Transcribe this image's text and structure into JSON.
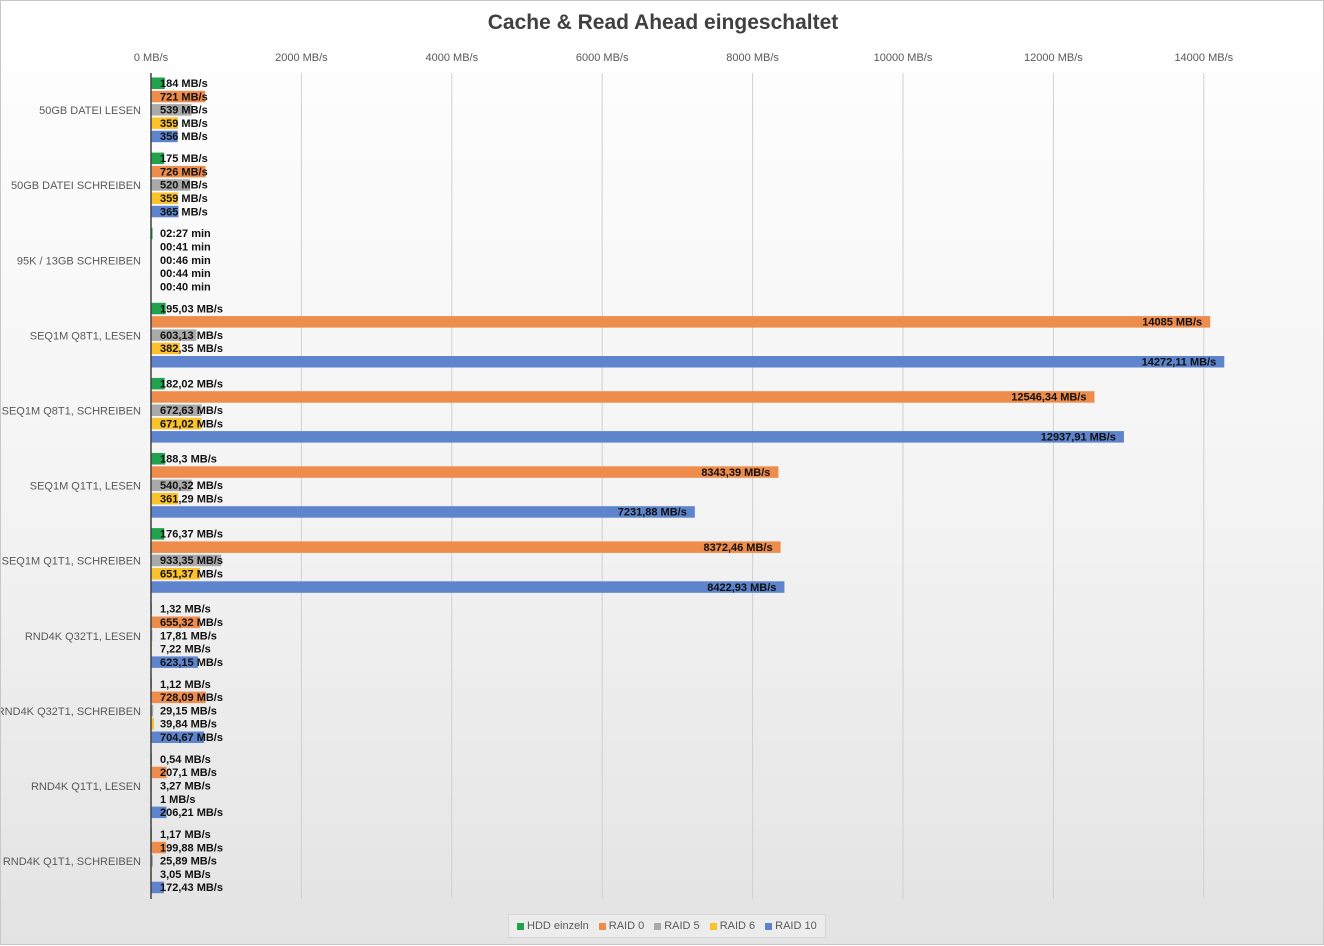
{
  "chart_data": {
    "type": "bar",
    "orientation": "horizontal",
    "title": "Cache & Read Ahead eingeschaltet",
    "xlabel": "",
    "ylabel": "",
    "xlim": [
      0,
      14000
    ],
    "grid": true,
    "legend_position": "bottom",
    "tick_values": [
      0,
      2000,
      4000,
      6000,
      8000,
      10000,
      12000,
      14000
    ],
    "tick_labels": [
      "0 MB/s",
      "2000 MB/s",
      "4000 MB/s",
      "6000 MB/s",
      "8000 MB/s",
      "10000 MB/s",
      "12000 MB/s",
      "14000 MB/s"
    ],
    "categories": [
      "50GB DATEI LESEN",
      "50GB DATEI SCHREIBEN",
      "95K / 13GB SCHREIBEN",
      "SEQ1M Q8T1, LESEN",
      "SEQ1M Q8T1, SCHREIBEN",
      "SEQ1M Q1T1, LESEN",
      "SEQ1M Q1T1, SCHREIBEN",
      "RND4K Q32T1, LESEN",
      "RND4K Q32T1, SCHREIBEN",
      "RND4K Q1T1, LESEN",
      "RND4K Q1T1, SCHREIBEN"
    ],
    "series": [
      {
        "name": "HDD einzeln",
        "color": "#21a34d",
        "values": [
          184,
          175,
          20,
          195.03,
          182.02,
          188.3,
          176.37,
          1.32,
          1.12,
          0.54,
          1.17
        ],
        "labels": [
          "184 MB/s",
          "175 MB/s",
          "02:27 min",
          "195,03 MB/s",
          "182,02 MB/s",
          "188,3 MB/s",
          "176,37 MB/s",
          "1,32 MB/s",
          "1,12 MB/s",
          "0,54 MB/s",
          "1,17 MB/s"
        ]
      },
      {
        "name": "RAID 0",
        "color": "#ee8c4c",
        "values": [
          721,
          726,
          0,
          14085,
          12546.34,
          8343.39,
          8372.46,
          655.32,
          728.09,
          207.1,
          199.88
        ],
        "labels": [
          "721 MB/s",
          "726 MB/s",
          "00:41 min",
          "14085 MB/s",
          "12546,34 MB/s",
          "8343,39 MB/s",
          "8372,46 MB/s",
          "655,32 MB/s",
          "728,09 MB/s",
          "207,1 MB/s",
          "199,88 MB/s"
        ]
      },
      {
        "name": "RAID 5",
        "color": "#a9a9a9",
        "values": [
          539,
          520,
          0,
          603.13,
          672.63,
          540.32,
          933.35,
          17.81,
          29.15,
          3.27,
          25.89
        ],
        "labels": [
          "539 MB/s",
          "520 MB/s",
          "00:46 min",
          "603,13 MB/s",
          "672,63 MB/s",
          "540,32 MB/s",
          "933,35 MB/s",
          "17,81 MB/s",
          "29,15 MB/s",
          "3,27 MB/s",
          "25,89 MB/s"
        ]
      },
      {
        "name": "RAID 6",
        "color": "#fcc22c",
        "values": [
          359,
          359,
          0,
          382.35,
          671.02,
          361.29,
          651.37,
          7.22,
          39.84,
          1,
          3.05
        ],
        "labels": [
          "359 MB/s",
          "359 MB/s",
          "00:44 min",
          "382,35 MB/s",
          "671,02 MB/s",
          "361,29 MB/s",
          "651,37 MB/s",
          "7,22 MB/s",
          "39,84 MB/s",
          "1 MB/s",
          "3,05 MB/s"
        ]
      },
      {
        "name": "RAID 10",
        "color": "#5d84cc",
        "values": [
          356,
          365,
          0,
          14272.11,
          12937.91,
          7231.88,
          8422.93,
          623.15,
          704.67,
          206.21,
          172.43
        ],
        "labels": [
          "356 MB/s",
          "365 MB/s",
          "00:40 min",
          "14272,11 MB/s",
          "12937,91 MB/s",
          "7231,88 MB/s",
          "8422,93 MB/s",
          "623,15 MB/s",
          "704,67 MB/s",
          "206,21 MB/s",
          "172,43 MB/s"
        ]
      }
    ]
  }
}
